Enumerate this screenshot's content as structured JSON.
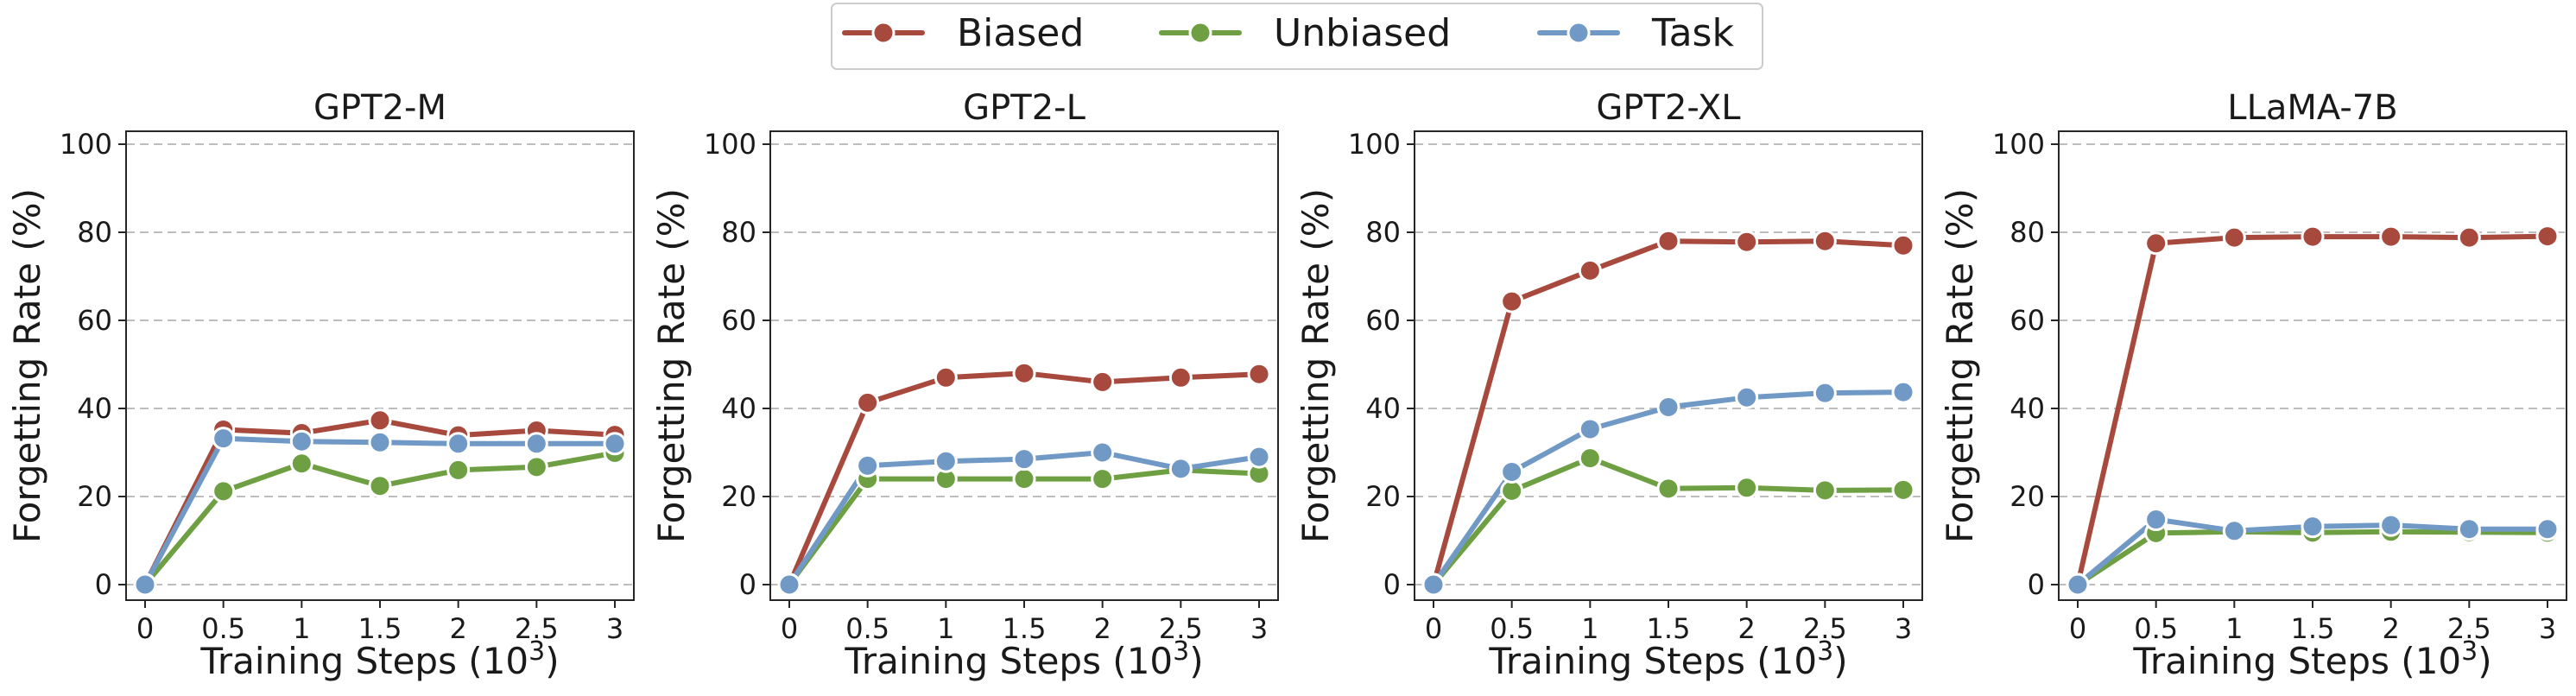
{
  "legend": {
    "placement": "top-center",
    "entries": [
      {
        "label": "Biased",
        "color": "#a8493d"
      },
      {
        "label": "Unbiased",
        "color": "#6ea043"
      },
      {
        "label": "Task",
        "color": "#7199c5"
      }
    ]
  },
  "chart_data": [
    {
      "type": "line",
      "title": "GPT2-M",
      "xlabel_base": "Training Steps (10",
      "xlabel_exp": "3",
      "xlabel_close": ")",
      "ylabel": "Forgetting Rate (%)",
      "x": [
        0,
        0.5,
        1,
        1.5,
        2,
        2.5,
        3
      ],
      "xticks": [
        "0",
        "0.5",
        "1",
        "1.5",
        "2",
        "2.5",
        "3"
      ],
      "yticks": [
        "0",
        "20",
        "40",
        "60",
        "80",
        "100"
      ],
      "ylim": [
        0,
        100
      ],
      "grid": true,
      "series": [
        {
          "name": "Biased",
          "color": "#a8493d",
          "values": [
            0,
            35.2,
            34.4,
            37.3,
            33.9,
            35.0,
            34.0
          ]
        },
        {
          "name": "Unbiased",
          "color": "#6ea043",
          "values": [
            0,
            21.2,
            27.5,
            22.4,
            26.0,
            26.7,
            29.9
          ]
        },
        {
          "name": "Task",
          "color": "#7199c5",
          "values": [
            0,
            33.2,
            32.5,
            32.3,
            32.0,
            32.0,
            32.0
          ]
        }
      ]
    },
    {
      "type": "line",
      "title": "GPT2-L",
      "xlabel_base": "Training Steps (10",
      "xlabel_exp": "3",
      "xlabel_close": ")",
      "ylabel": "Forgetting Rate (%)",
      "x": [
        0,
        0.5,
        1,
        1.5,
        2,
        2.5,
        3
      ],
      "xticks": [
        "0",
        "0.5",
        "1",
        "1.5",
        "2",
        "2.5",
        "3"
      ],
      "yticks": [
        "0",
        "20",
        "40",
        "60",
        "80",
        "100"
      ],
      "ylim": [
        0,
        100
      ],
      "grid": true,
      "series": [
        {
          "name": "Biased",
          "color": "#a8493d",
          "values": [
            0,
            41.3,
            47.0,
            48.0,
            46.0,
            47.0,
            47.8
          ]
        },
        {
          "name": "Unbiased",
          "color": "#6ea043",
          "values": [
            0,
            24.0,
            24.0,
            24.0,
            24.0,
            26.0,
            25.2
          ]
        },
        {
          "name": "Task",
          "color": "#7199c5",
          "values": [
            0,
            27.0,
            28.0,
            28.5,
            30.0,
            26.3,
            29.0
          ]
        }
      ]
    },
    {
      "type": "line",
      "title": "GPT2-XL",
      "xlabel_base": "Training Steps (10",
      "xlabel_exp": "3",
      "xlabel_close": ")",
      "ylabel": "Forgetting Rate (%)",
      "x": [
        0,
        0.5,
        1,
        1.5,
        2,
        2.5,
        3
      ],
      "xticks": [
        "0",
        "0.5",
        "1",
        "1.5",
        "2",
        "2.5",
        "3"
      ],
      "yticks": [
        "0",
        "20",
        "40",
        "60",
        "80",
        "100"
      ],
      "ylim": [
        0,
        100
      ],
      "grid": true,
      "series": [
        {
          "name": "Biased",
          "color": "#a8493d",
          "values": [
            0,
            64.3,
            71.3,
            78.0,
            77.8,
            78.0,
            77.0
          ]
        },
        {
          "name": "Unbiased",
          "color": "#6ea043",
          "values": [
            0,
            21.3,
            28.7,
            21.8,
            22.0,
            21.4,
            21.5
          ]
        },
        {
          "name": "Task",
          "color": "#7199c5",
          "values": [
            0,
            25.6,
            35.3,
            40.3,
            42.5,
            43.5,
            43.7
          ]
        }
      ]
    },
    {
      "type": "line",
      "title": "LLaMA-7B",
      "xlabel_base": "Training Steps (10",
      "xlabel_exp": "3",
      "xlabel_close": ")",
      "ylabel": "Forgetting Rate (%)",
      "x": [
        0,
        0.5,
        1,
        1.5,
        2,
        2.5,
        3
      ],
      "xticks": [
        "0",
        "0.5",
        "1",
        "1.5",
        "2",
        "2.5",
        "3"
      ],
      "yticks": [
        "0",
        "20",
        "40",
        "60",
        "80",
        "100"
      ],
      "ylim": [
        0,
        100
      ],
      "grid": true,
      "series": [
        {
          "name": "Biased",
          "color": "#a8493d",
          "values": [
            0,
            77.5,
            78.8,
            79.0,
            79.0,
            78.8,
            79.1
          ]
        },
        {
          "name": "Unbiased",
          "color": "#6ea043",
          "values": [
            0,
            11.7,
            12.0,
            11.8,
            12.0,
            11.9,
            11.8
          ]
        },
        {
          "name": "Task",
          "color": "#7199c5",
          "values": [
            0,
            14.8,
            12.2,
            13.2,
            13.5,
            12.6,
            12.6
          ]
        }
      ]
    }
  ]
}
